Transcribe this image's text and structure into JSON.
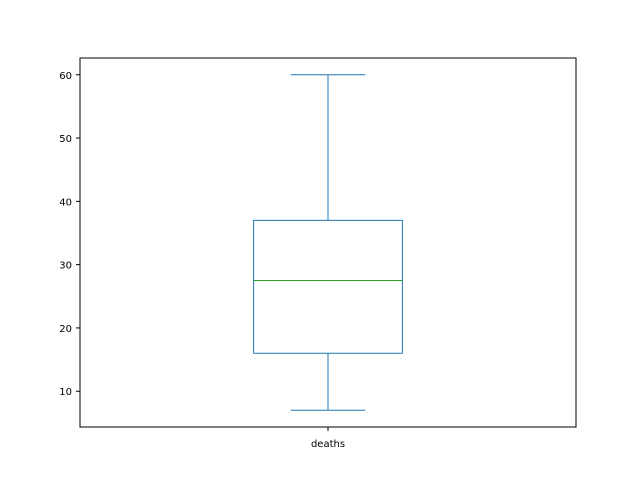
{
  "chart_data": {
    "type": "box",
    "categories": [
      "deaths"
    ],
    "boxes": [
      {
        "label": "deaths",
        "whisker_low": 7,
        "q1": 16,
        "median": 27.5,
        "q3": 37,
        "whisker_high": 60
      }
    ],
    "yticks": [
      10,
      20,
      30,
      40,
      50,
      60
    ],
    "ylim": [
      4.35,
      62.65
    ],
    "grid": false,
    "colors": {
      "box": "#1f77b4",
      "median": "#2ca02c",
      "axis": "#000000"
    }
  }
}
